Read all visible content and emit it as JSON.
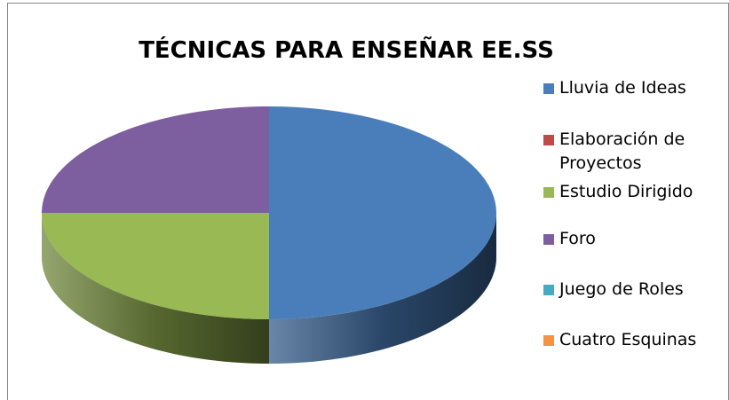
{
  "chart_data": {
    "type": "pie",
    "title": "TÉCNICAS PARA ENSEÑAR EE.SS",
    "categories": [
      "Lluvia de Ideas",
      "Elaboración de Proyectos",
      "Estudio Dirigido",
      "Foro",
      "Juego de Roles",
      "Cuatro Esquinas"
    ],
    "values": [
      50,
      0,
      25,
      25,
      0,
      0
    ],
    "colors": [
      "#4a7ebb",
      "#be4b48",
      "#98b954",
      "#7d5fa0",
      "#46aac5",
      "#f69240"
    ],
    "legend": "right",
    "three_d": true
  }
}
